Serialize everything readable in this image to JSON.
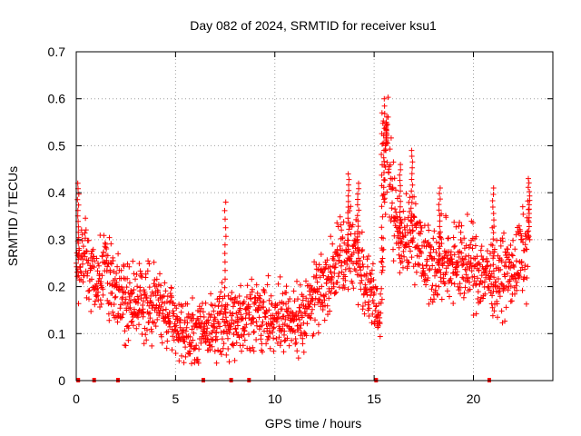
{
  "chart_data": {
    "type": "scatter",
    "title": "Day 082 of 2024, SRMTID for receiver ksu1",
    "xlabel": "GPS time / hours",
    "ylabel": "SRMTID / TECUs",
    "xlim": [
      0,
      24
    ],
    "ylim": [
      0,
      0.7
    ],
    "xticks": [
      0,
      5,
      10,
      15,
      20
    ],
    "xtick_labels": [
      "0",
      "5",
      "10",
      "15",
      "20"
    ],
    "yticks": [
      0,
      0.1,
      0.2,
      0.3,
      0.4,
      0.5,
      0.6,
      0.7
    ],
    "ytick_labels": [
      "0",
      "0.1",
      "0.2",
      "0.3",
      "0.4",
      "0.5",
      "0.6",
      "0.7"
    ],
    "grid": true,
    "marker": "plus",
    "series_color": "#ff0000",
    "trend": {
      "x": [
        0,
        0.5,
        1.0,
        1.5,
        2.0,
        3.0,
        4.0,
        5.0,
        6.0,
        7.0,
        8.0,
        9.0,
        10.0,
        11.0,
        12.0,
        13.0,
        14.0,
        14.6,
        15.3,
        15.6,
        16.2,
        17.0,
        18.0,
        19.0,
        20.0,
        21.0,
        22.0,
        22.8
      ],
      "y": [
        0.26,
        0.25,
        0.2,
        0.24,
        0.19,
        0.16,
        0.17,
        0.12,
        0.09,
        0.12,
        0.13,
        0.14,
        0.13,
        0.12,
        0.18,
        0.24,
        0.29,
        0.2,
        0.14,
        0.5,
        0.3,
        0.32,
        0.24,
        0.26,
        0.24,
        0.22,
        0.23,
        0.3
      ]
    },
    "noise_amplitude": 0.06,
    "points_per_hour": 80,
    "spikes": [
      {
        "x": 15.5,
        "y": 0.6
      },
      {
        "x": 15.4,
        "y": 0.57
      },
      {
        "x": 15.6,
        "y": 0.55
      },
      {
        "x": 7.5,
        "y": 0.38
      },
      {
        "x": 13.7,
        "y": 0.44
      },
      {
        "x": 16.9,
        "y": 0.49
      },
      {
        "x": 0.1,
        "y": 0.42
      },
      {
        "x": 22.8,
        "y": 0.43
      },
      {
        "x": 21.0,
        "y": 0.41
      },
      {
        "x": 18.3,
        "y": 0.41
      },
      {
        "x": 14.2,
        "y": 0.42
      },
      {
        "x": 16.3,
        "y": 0.46
      }
    ],
    "zero_markers_x": [
      0.1,
      0.9,
      2.1,
      6.4,
      7.8,
      8.7,
      15.1,
      20.8
    ]
  }
}
